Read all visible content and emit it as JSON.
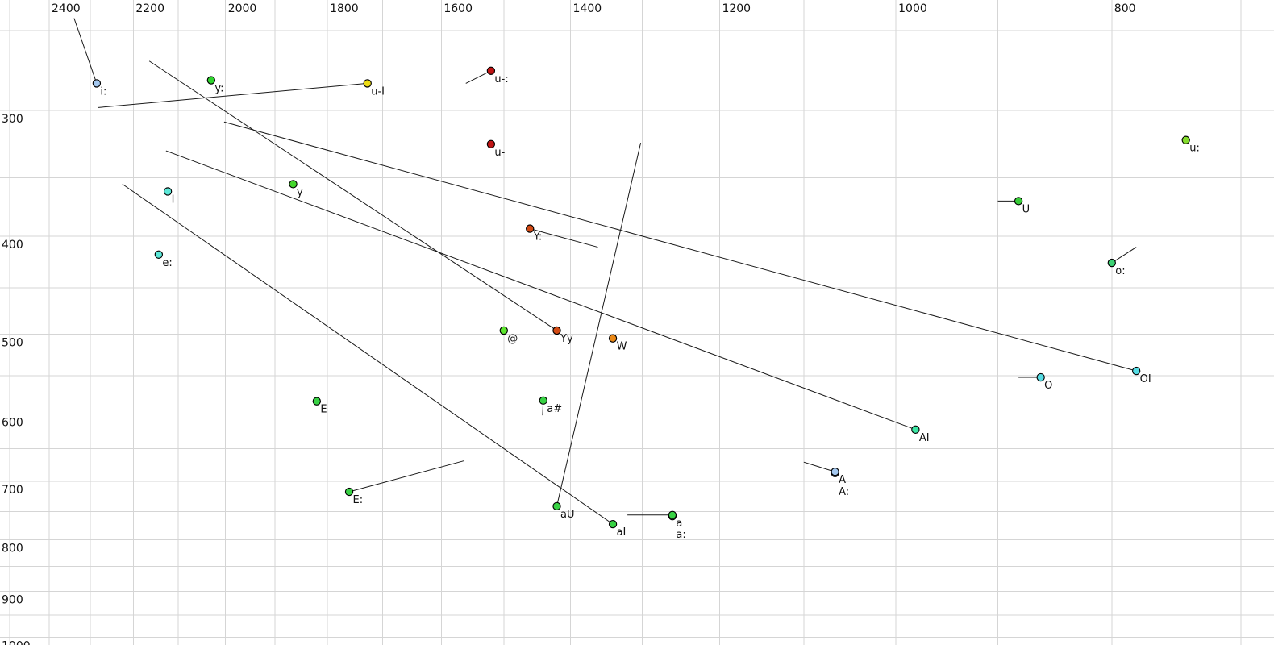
{
  "chart_data": {
    "type": "scatter",
    "title": "",
    "xlabel": "",
    "ylabel": "",
    "x_axis": {
      "unit": "Hz",
      "scale": "log",
      "reversed": true,
      "tick_labels": [
        "2400",
        "2200",
        "2000",
        "1800",
        "1600",
        "1400",
        "1200",
        "1000",
        "800"
      ],
      "tick_values": [
        2400,
        2200,
        2000,
        1800,
        1600,
        1400,
        1200,
        1000,
        800
      ],
      "gridline_values": [
        2500,
        2400,
        2300,
        2200,
        2100,
        2000,
        1900,
        1800,
        1700,
        1600,
        1500,
        1400,
        1300,
        1200,
        1100,
        1000,
        900,
        800,
        700
      ],
      "range": [
        2525,
        665
      ]
    },
    "y_axis": {
      "unit": "Hz",
      "scale": "log",
      "reversed": false,
      "tick_labels": [
        "300",
        "400",
        "500",
        "600",
        "700",
        "800",
        "900",
        "1000"
      ],
      "tick_values": [
        300,
        400,
        500,
        600,
        700,
        800,
        900,
        1000
      ],
      "gridline_values": [
        250,
        300,
        350,
        400,
        450,
        500,
        550,
        600,
        650,
        700,
        750,
        800,
        850,
        900,
        950,
        1000
      ],
      "range": [
        233,
        1007
      ]
    },
    "grid": true,
    "legend": false,
    "colors": {
      "light_blue": "#a4c8f0",
      "cyan": "#55dce4",
      "turquoise": "#5ce8d8",
      "green": "#38d238",
      "sea_green": "#3cd274",
      "green_turquoise": "#3ce6a4",
      "yellow_green": "#84dc2c",
      "bright_yellow_green": "#5ce62e",
      "yellow": "#ecdc14",
      "dark_red": "#c01414",
      "vermilion": "#d24a14",
      "orange": "#ea8714",
      "grid_gray": "#d5d5d5",
      "line_black": "#1a1a1a"
    },
    "points": [
      {
        "label": "i:",
        "f2": 2285,
        "f1": 282,
        "color": "#a4c8f0",
        "tail": {
          "f2": 2339,
          "f1": 243
        },
        "line": 1
      },
      {
        "label": "y:",
        "f2": 2030,
        "f1": 280,
        "color": "#2ed42e",
        "tail": null,
        "line": 1
      },
      {
        "label": "u-I",
        "f2": 1727,
        "f1": 282,
        "color": "#ecdc14",
        "tail": {
          "f2": 2281,
          "f1": 298
        },
        "line": 1
      },
      {
        "label": "u-:",
        "f2": 1520,
        "f1": 274,
        "color": "#c01414",
        "tail": {
          "f2": 1560,
          "f1": 282
        },
        "line": 1
      },
      {
        "label": "u-",
        "f2": 1520,
        "f1": 324,
        "color": "#c01414",
        "tail": null,
        "line": 1
      },
      {
        "label": "y",
        "f2": 1865,
        "f1": 355,
        "color": "#44d62c",
        "tail": null,
        "line": 1
      },
      {
        "label": "I",
        "f2": 2123,
        "f1": 361,
        "color": "#5ce8d8",
        "tail": null,
        "line": 1
      },
      {
        "label": "e:",
        "f2": 2143,
        "f1": 417,
        "color": "#5ce8d8",
        "tail": null,
        "line": 1
      },
      {
        "label": "U",
        "f2": 881,
        "f1": 369,
        "color": "#38cc38",
        "tail": {
          "f2": 900,
          "f1": 369
        },
        "line": 1
      },
      {
        "label": "u:",
        "f2": 741,
        "f1": 321,
        "color": "#84dc2c",
        "tail": null,
        "line": 1
      },
      {
        "label": "o:",
        "f2": 800,
        "f1": 425,
        "color": "#3cd274",
        "tail": {
          "f2": 780,
          "f1": 410
        },
        "line": 1
      },
      {
        "label": "Y:",
        "f2": 1460,
        "f1": 393,
        "color": "#d24a14",
        "tail": {
          "f2": 1361,
          "f1": 410
        },
        "line": 1
      },
      {
        "label": "@",
        "f2": 1500,
        "f1": 496,
        "color": "#5ce62e",
        "tail": null,
        "line": 1
      },
      {
        "label": "Yy",
        "f2": 1420,
        "f1": 496,
        "color": "#d24a14",
        "tail": {
          "f2": 2164,
          "f1": 268
        },
        "line": 1
      },
      {
        "label": "W",
        "f2": 1340,
        "f1": 505,
        "color": "#ea8714",
        "tail": null,
        "line": 1
      },
      {
        "label": "O",
        "f2": 861,
        "f1": 552,
        "color": "#55dce4",
        "tail": {
          "f2": 881,
          "f1": 552
        },
        "line": 1
      },
      {
        "label": "OI",
        "f2": 780,
        "f1": 544,
        "color": "#55dce4",
        "tail": {
          "f2": 2003,
          "f1": 308
        },
        "line": 1
      },
      {
        "label": "E",
        "f2": 1820,
        "f1": 583,
        "color": "#38d244",
        "tail": null,
        "line": 1
      },
      {
        "label": "a#",
        "f2": 1440,
        "f1": 582,
        "color": "#38d244",
        "tail": {
          "f2": 1441,
          "f1": 602
        },
        "line": 1
      },
      {
        "label": "AI",
        "f2": 980,
        "f1": 622,
        "color": "#3ce6a4",
        "tail": {
          "f2": 2127,
          "f1": 329
        },
        "line": 1
      },
      {
        "label": "A:",
        "f2": 1065,
        "f1": 687,
        "color": "#a4c8f0",
        "tail": null,
        "line": 2
      },
      {
        "label": "A",
        "f2": 1065,
        "f1": 685,
        "color": "#a4c8f0",
        "tail": {
          "f2": 1100,
          "f1": 670
        },
        "line": 1
      },
      {
        "label": "E:",
        "f2": 1760,
        "f1": 717,
        "color": "#38d244",
        "tail": {
          "f2": 1563,
          "f1": 668
        },
        "line": 1
      },
      {
        "label": "aU",
        "f2": 1420,
        "f1": 741,
        "color": "#38d244",
        "tail": {
          "f2": 1302,
          "f1": 323
        },
        "line": 1
      },
      {
        "label": "aI",
        "f2": 1340,
        "f1": 772,
        "color": "#38d244",
        "tail": {
          "f2": 2225,
          "f1": 355
        },
        "line": 1
      },
      {
        "label": "a:",
        "f2": 1260,
        "f1": 758,
        "color": "#38d244",
        "tail": null,
        "line": 2
      },
      {
        "label": "a",
        "f2": 1260,
        "f1": 756,
        "color": "#38d244",
        "tail": {
          "f2": 1320,
          "f1": 756
        },
        "line": 1
      }
    ]
  }
}
